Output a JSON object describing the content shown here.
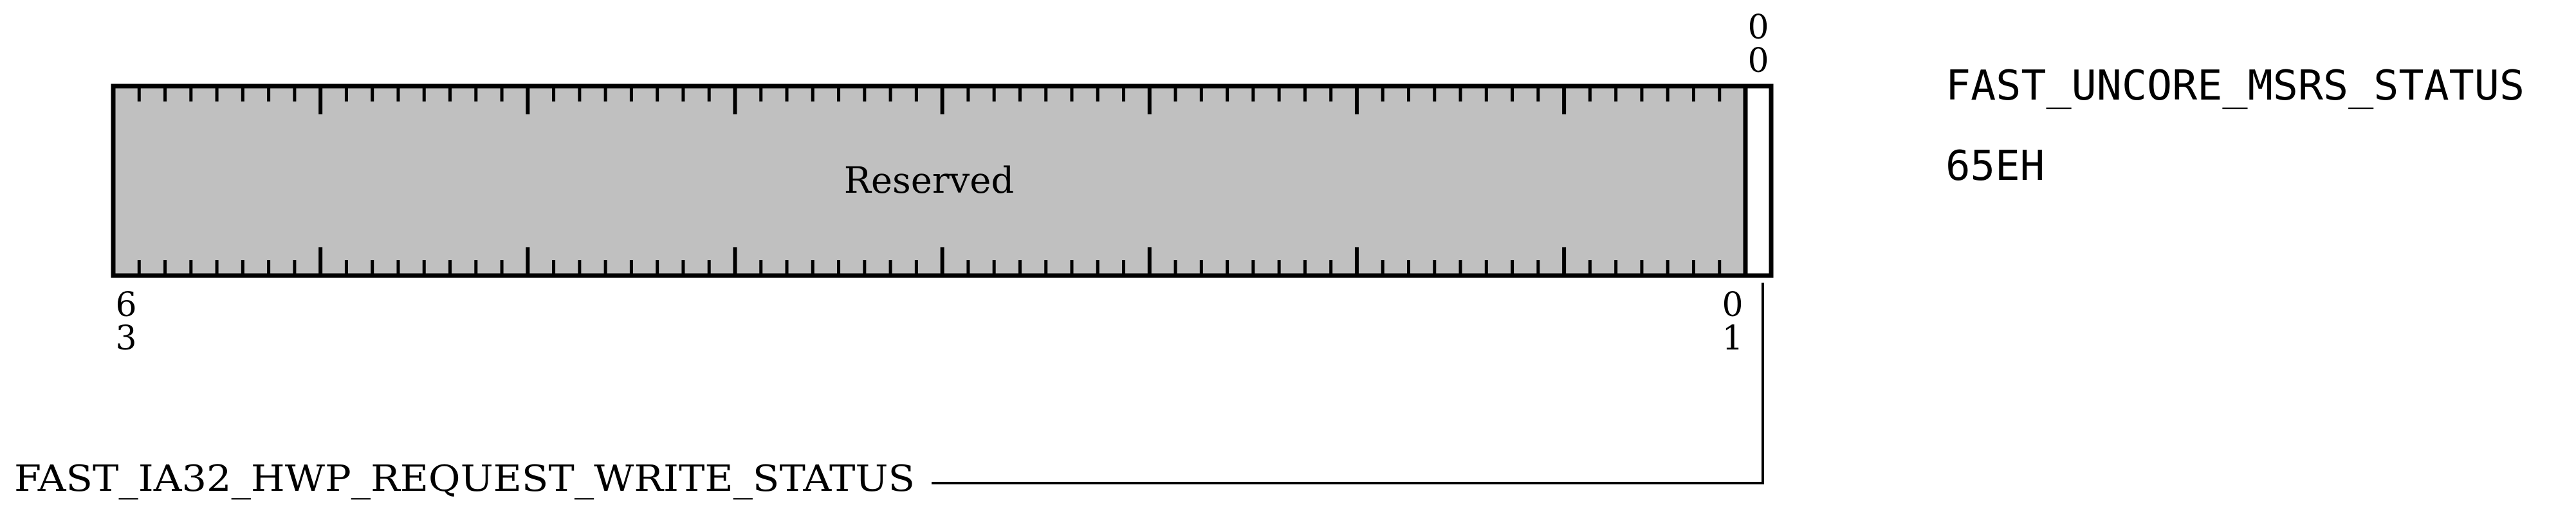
{
  "register": {
    "name": "FAST_UNCORE_MSRS_STATUS",
    "address": "65EH"
  },
  "bit_labels": {
    "high_bit_top": "6",
    "high_bit_bottom": "3",
    "field_top_digit1": "0",
    "field_top_digit2": "0",
    "reserved_end_top": "0",
    "reserved_end_bottom": "1"
  },
  "fields": {
    "reserved": {
      "label": "Reserved",
      "fill_color": "#c0c0c0"
    },
    "bit0": {
      "label": "FAST_IA32_HWP_REQUEST_WRITE_STATUS",
      "fill_color": "#ffffff"
    }
  },
  "colors": {
    "stroke": "#000000",
    "background": "#ffffff"
  }
}
